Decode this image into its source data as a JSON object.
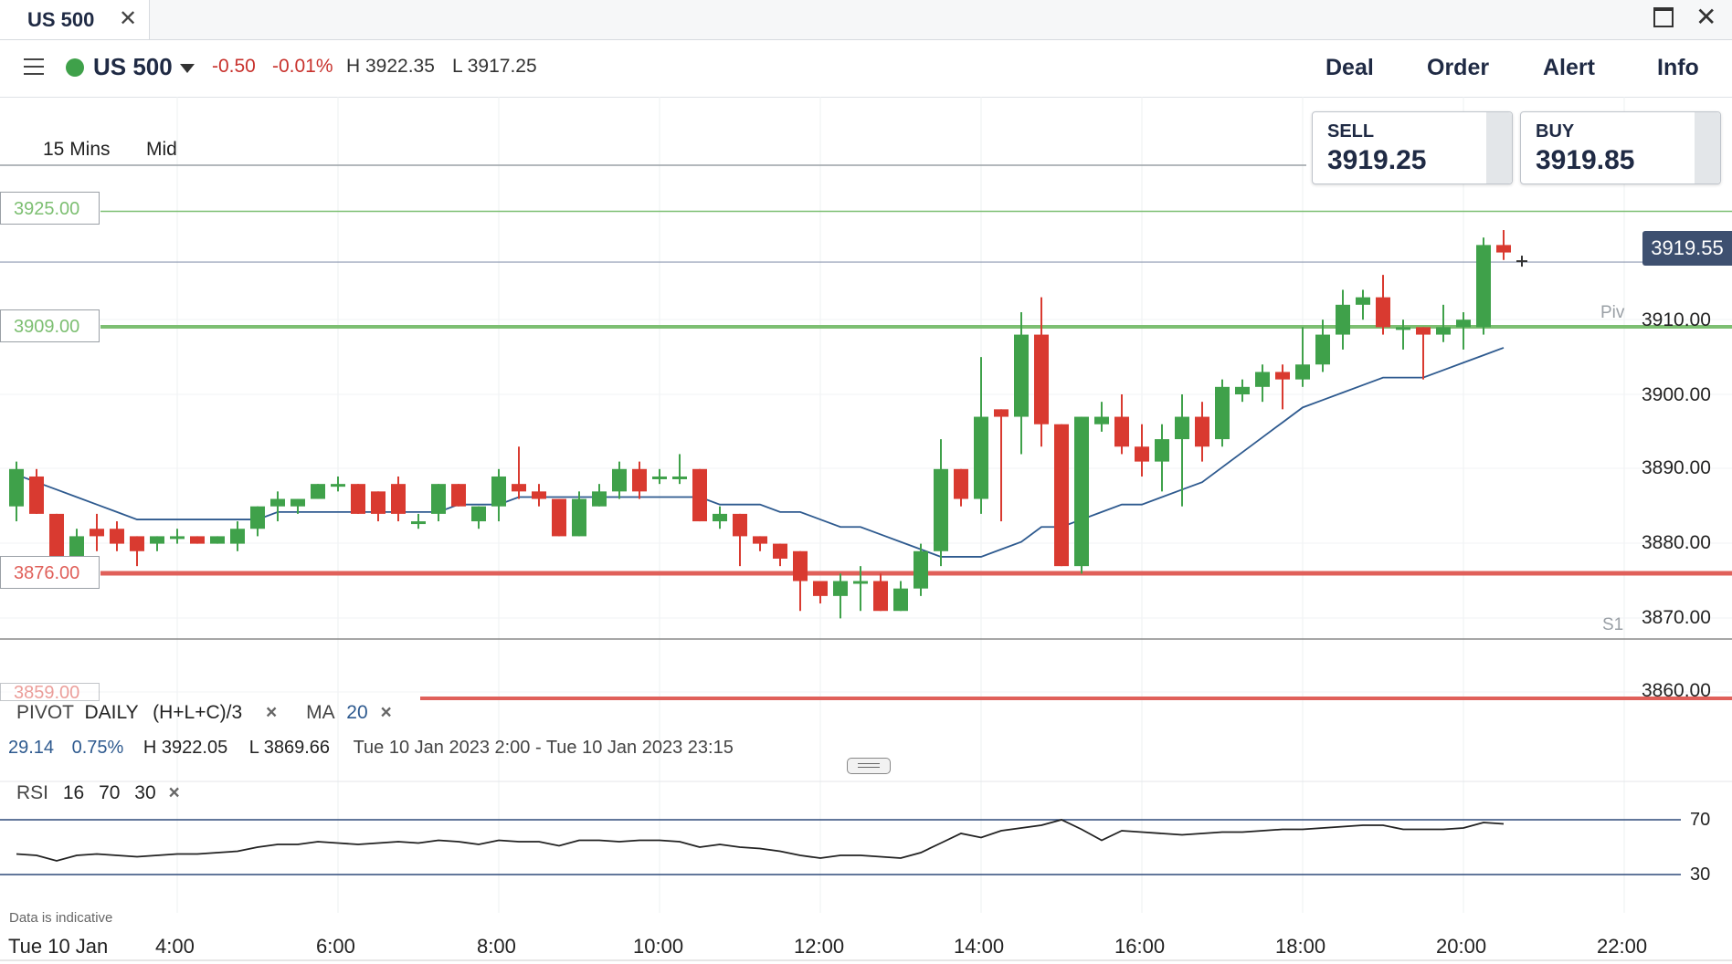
{
  "window": {
    "tab_title": "US 500",
    "close_glyph": "✕"
  },
  "header": {
    "instrument": "US 500",
    "change": "-0.50",
    "change_pct": "-0.01%",
    "high": "H 3922.35",
    "low": "L 3917.25",
    "nav": [
      "Deal",
      "Order",
      "Alert",
      "Info"
    ]
  },
  "toolbar": {
    "interval": "15 Mins",
    "price_type": "Mid"
  },
  "quotes": {
    "sell_label": "SELL",
    "sell_price": "3919.25",
    "buy_label": "BUY",
    "buy_price": "3919.85"
  },
  "price_tags": {
    "r1": "3925.00",
    "pivot": "3909.00",
    "s1": "3876.00",
    "s2": "3859.00"
  },
  "pivot_labels": {
    "piv": "Piv",
    "s1": "S1"
  },
  "current_price": "3919.55",
  "indicators": {
    "pivot_name": "PIVOT",
    "pivot_period": "DAILY",
    "pivot_formula": "(H+L+C)/3",
    "ma_name": "MA",
    "ma_period": "20",
    "stats_change": "29.14",
    "stats_pct": "0.75%",
    "stats_high": "H 3922.05",
    "stats_low": "L 3869.66",
    "stats_range": "Tue 10 Jan 2023 2:00 - Tue 10 Jan 2023 23:15",
    "rsi_name": "RSI",
    "rsi_period": "16",
    "rsi_upper": "70",
    "rsi_lower": "30"
  },
  "disclaimer": "Data is indicative",
  "colors": {
    "up": "#3fa14a",
    "down": "#d93a30",
    "ma": "#2e5a8f",
    "pivot": "#7dbf72",
    "support": "#e0605a",
    "current": "#3e5070"
  },
  "chart_data": {
    "type": "candlestick",
    "y_ticks": [
      "3910.00",
      "3900.00",
      "3890.00",
      "3880.00",
      "3870.00",
      "3860.00"
    ],
    "ylim": [
      3858,
      3930
    ],
    "x_ticks": [
      "Tue 10 Jan",
      "4:00",
      "6:00",
      "8:00",
      "10:00",
      "12:00",
      "14:00",
      "16:00",
      "18:00",
      "20:00",
      "22:00"
    ],
    "levels": {
      "r1": 3925.0,
      "pivot": 3909.0,
      "s1": 3876.0,
      "s2": 3859.0,
      "current": 3919.55,
      "piv_line": 3910.0,
      "s1_line": 3870.0
    },
    "candles": [
      {
        "o": 3885,
        "h": 3891,
        "l": 3883,
        "c": 3890
      },
      {
        "o": 3889,
        "h": 3890,
        "l": 3884,
        "c": 3884
      },
      {
        "o": 3884,
        "h": 3884,
        "l": 3877,
        "c": 3877
      },
      {
        "o": 3878,
        "h": 3882,
        "l": 3877,
        "c": 3881
      },
      {
        "o": 3882,
        "h": 3884,
        "l": 3879,
        "c": 3881
      },
      {
        "o": 3882,
        "h": 3883,
        "l": 3879,
        "c": 3880
      },
      {
        "o": 3881,
        "h": 3881,
        "l": 3877,
        "c": 3879
      },
      {
        "o": 3880,
        "h": 3881,
        "l": 3879,
        "c": 3881
      },
      {
        "o": 3881,
        "h": 3882,
        "l": 3880,
        "c": 3881
      },
      {
        "o": 3881,
        "h": 3881,
        "l": 3880,
        "c": 3880
      },
      {
        "o": 3880,
        "h": 3881,
        "l": 3880,
        "c": 3881
      },
      {
        "o": 3880,
        "h": 3883,
        "l": 3879,
        "c": 3882
      },
      {
        "o": 3882,
        "h": 3885,
        "l": 3881,
        "c": 3885
      },
      {
        "o": 3885,
        "h": 3887,
        "l": 3883,
        "c": 3886
      },
      {
        "o": 3885,
        "h": 3886,
        "l": 3884,
        "c": 3886
      },
      {
        "o": 3886,
        "h": 3888,
        "l": 3886,
        "c": 3888
      },
      {
        "o": 3888,
        "h": 3889,
        "l": 3887,
        "c": 3888
      },
      {
        "o": 3888,
        "h": 3888,
        "l": 3884,
        "c": 3884
      },
      {
        "o": 3887,
        "h": 3887,
        "l": 3883,
        "c": 3884
      },
      {
        "o": 3888,
        "h": 3889,
        "l": 3883,
        "c": 3884
      },
      {
        "o": 3883,
        "h": 3884,
        "l": 3882,
        "c": 3883
      },
      {
        "o": 3884,
        "h": 3888,
        "l": 3883,
        "c": 3888
      },
      {
        "o": 3888,
        "h": 3888,
        "l": 3885,
        "c": 3885
      },
      {
        "o": 3883,
        "h": 3885,
        "l": 3882,
        "c": 3885
      },
      {
        "o": 3885,
        "h": 3890,
        "l": 3883,
        "c": 3889
      },
      {
        "o": 3888,
        "h": 3893,
        "l": 3886,
        "c": 3887
      },
      {
        "o": 3887,
        "h": 3888,
        "l": 3885,
        "c": 3886
      },
      {
        "o": 3886,
        "h": 3886,
        "l": 3881,
        "c": 3881
      },
      {
        "o": 3881,
        "h": 3887,
        "l": 3881,
        "c": 3886
      },
      {
        "o": 3885,
        "h": 3888,
        "l": 3885,
        "c": 3887
      },
      {
        "o": 3887,
        "h": 3891,
        "l": 3886,
        "c": 3890
      },
      {
        "o": 3890,
        "h": 3891,
        "l": 3886,
        "c": 3887
      },
      {
        "o": 3889,
        "h": 3890,
        "l": 3888,
        "c": 3889
      },
      {
        "o": 3889,
        "h": 3892,
        "l": 3888,
        "c": 3889
      },
      {
        "o": 3890,
        "h": 3890,
        "l": 3883,
        "c": 3883
      },
      {
        "o": 3883,
        "h": 3885,
        "l": 3882,
        "c": 3884
      },
      {
        "o": 3884,
        "h": 3884,
        "l": 3877,
        "c": 3881
      },
      {
        "o": 3881,
        "h": 3881,
        "l": 3879,
        "c": 3880
      },
      {
        "o": 3880,
        "h": 3880,
        "l": 3877,
        "c": 3878
      },
      {
        "o": 3879,
        "h": 3879,
        "l": 3871,
        "c": 3875
      },
      {
        "o": 3875,
        "h": 3875,
        "l": 3872,
        "c": 3873
      },
      {
        "o": 3873,
        "h": 3876,
        "l": 3870,
        "c": 3875
      },
      {
        "o": 3875,
        "h": 3877,
        "l": 3871,
        "c": 3875
      },
      {
        "o": 3875,
        "h": 3876,
        "l": 3871,
        "c": 3871
      },
      {
        "o": 3871,
        "h": 3875,
        "l": 3871,
        "c": 3874
      },
      {
        "o": 3874,
        "h": 3880,
        "l": 3873,
        "c": 3879
      },
      {
        "o": 3879,
        "h": 3894,
        "l": 3877,
        "c": 3890
      },
      {
        "o": 3890,
        "h": 3890,
        "l": 3885,
        "c": 3886
      },
      {
        "o": 3886,
        "h": 3905,
        "l": 3884,
        "c": 3897
      },
      {
        "o": 3898,
        "h": 3898,
        "l": 3883,
        "c": 3897
      },
      {
        "o": 3897,
        "h": 3911,
        "l": 3892,
        "c": 3908
      },
      {
        "o": 3908,
        "h": 3913,
        "l": 3893,
        "c": 3896
      },
      {
        "o": 3896,
        "h": 3896,
        "l": 3877,
        "c": 3877
      },
      {
        "o": 3877,
        "h": 3897,
        "l": 3876,
        "c": 3897
      },
      {
        "o": 3896,
        "h": 3899,
        "l": 3895,
        "c": 3897
      },
      {
        "o": 3897,
        "h": 3900,
        "l": 3892,
        "c": 3893
      },
      {
        "o": 3893,
        "h": 3896,
        "l": 3889,
        "c": 3891
      },
      {
        "o": 3891,
        "h": 3896,
        "l": 3887,
        "c": 3894
      },
      {
        "o": 3894,
        "h": 3900,
        "l": 3885,
        "c": 3897
      },
      {
        "o": 3897,
        "h": 3899,
        "l": 3891,
        "c": 3893
      },
      {
        "o": 3894,
        "h": 3902,
        "l": 3893,
        "c": 3901
      },
      {
        "o": 3900,
        "h": 3902,
        "l": 3899,
        "c": 3901
      },
      {
        "o": 3901,
        "h": 3904,
        "l": 3899,
        "c": 3903
      },
      {
        "o": 3903,
        "h": 3904,
        "l": 3898,
        "c": 3902
      },
      {
        "o": 3902,
        "h": 3909,
        "l": 3901,
        "c": 3904
      },
      {
        "o": 3904,
        "h": 3910,
        "l": 3903,
        "c": 3908
      },
      {
        "o": 3908,
        "h": 3914,
        "l": 3906,
        "c": 3912
      },
      {
        "o": 3912,
        "h": 3914,
        "l": 3910,
        "c": 3913
      },
      {
        "o": 3913,
        "h": 3916,
        "l": 3908,
        "c": 3909
      },
      {
        "o": 3909,
        "h": 3910,
        "l": 3906,
        "c": 3909
      },
      {
        "o": 3909,
        "h": 3909,
        "l": 3902,
        "c": 3908
      },
      {
        "o": 3908,
        "h": 3912,
        "l": 3907,
        "c": 3909
      },
      {
        "o": 3909,
        "h": 3911,
        "l": 3906,
        "c": 3910
      },
      {
        "o": 3909,
        "h": 3921,
        "l": 3908,
        "c": 3920
      },
      {
        "o": 3920,
        "h": 3922,
        "l": 3918,
        "c": 3919
      }
    ],
    "ma20": [
      3889,
      3888,
      3887,
      3886,
      3885,
      3884,
      3883,
      3883,
      3883,
      3883,
      3883,
      3883,
      3883,
      3884,
      3884,
      3884,
      3884,
      3884,
      3884,
      3884,
      3884,
      3884,
      3885,
      3885,
      3885,
      3886,
      3886,
      3886,
      3886,
      3886,
      3886,
      3886,
      3886,
      3886,
      3886,
      3885,
      3885,
      3885,
      3884,
      3884,
      3883,
      3882,
      3882,
      3881,
      3880,
      3879,
      3878,
      3878,
      3878,
      3879,
      3880,
      3882,
      3882,
      3883,
      3884,
      3885,
      3885,
      3886,
      3887,
      3888,
      3890,
      3892,
      3894,
      3896,
      3898,
      3899,
      3900,
      3901,
      3902,
      3902,
      3902,
      3903,
      3904,
      3905,
      3906
    ],
    "rsi": [
      45,
      44,
      40,
      44,
      45,
      44,
      43,
      44,
      45,
      45,
      46,
      47,
      50,
      52,
      52,
      54,
      53,
      52,
      53,
      54,
      53,
      55,
      54,
      52,
      55,
      54,
      54,
      51,
      55,
      55,
      54,
      55,
      55,
      54,
      50,
      52,
      50,
      49,
      47,
      44,
      42,
      44,
      44,
      43,
      42,
      46,
      53,
      60,
      57,
      62,
      64,
      66,
      70,
      63,
      55,
      62,
      61,
      60,
      59,
      60,
      61,
      61,
      62,
      63,
      63,
      64,
      65,
      66,
      66,
      63,
      63,
      63,
      64,
      68,
      67
    ]
  }
}
